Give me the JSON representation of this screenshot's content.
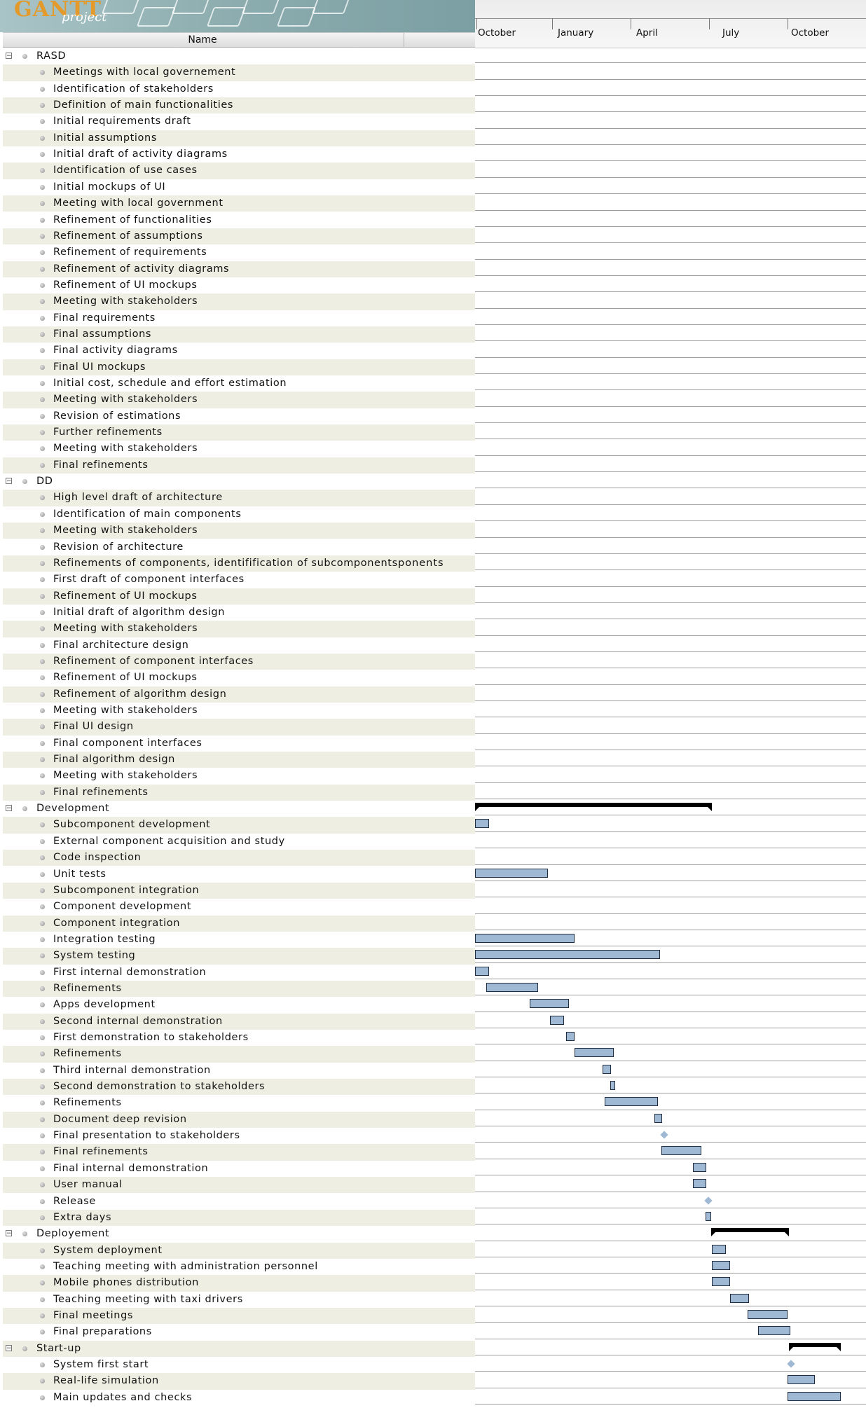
{
  "logo": {
    "title": "GANTT",
    "subtitle": "project"
  },
  "table": {
    "name_header": "Name"
  },
  "timeline": {
    "months": [
      "October",
      "January",
      "April",
      "July",
      "October"
    ]
  },
  "overflow_text": "ponents",
  "colors": {
    "bar_fill": "#9fb8d3",
    "bar_border": "#1f2d3f",
    "row_alt": "#efeee2",
    "summary": "#000000",
    "header_bg": "#7b9fa3"
  },
  "rows": [
    {
      "label": "RASD",
      "type": "group",
      "bar": null
    },
    {
      "label": "Meetings with local governement",
      "type": "task",
      "bar": null
    },
    {
      "label": "Identification of stakeholders",
      "type": "task",
      "bar": null
    },
    {
      "label": "Definition of main functionalities",
      "type": "task",
      "bar": null
    },
    {
      "label": "Initial requirements draft",
      "type": "task",
      "bar": null
    },
    {
      "label": "Initial assumptions",
      "type": "task",
      "bar": null
    },
    {
      "label": "Initial draft of activity diagrams",
      "type": "task",
      "bar": null
    },
    {
      "label": "Identification of use cases",
      "type": "task",
      "bar": null
    },
    {
      "label": "Initial mockups of UI",
      "type": "task",
      "bar": null
    },
    {
      "label": "Meeting with local government",
      "type": "task",
      "bar": null
    },
    {
      "label": "Refinement of functionalities",
      "type": "task",
      "bar": null
    },
    {
      "label": "Refinement of assumptions",
      "type": "task",
      "bar": null
    },
    {
      "label": "Refinement of requirements",
      "type": "task",
      "bar": null
    },
    {
      "label": "Refinement of activity diagrams",
      "type": "task",
      "bar": null
    },
    {
      "label": "Refinement of UI mockups",
      "type": "task",
      "bar": null
    },
    {
      "label": "Meeting with stakeholders",
      "type": "task",
      "bar": null
    },
    {
      "label": "Final requirements",
      "type": "task",
      "bar": null
    },
    {
      "label": "Final assumptions",
      "type": "task",
      "bar": null
    },
    {
      "label": "Final activity diagrams",
      "type": "task",
      "bar": null
    },
    {
      "label": "Final UI mockups",
      "type": "task",
      "bar": null
    },
    {
      "label": "Initial cost, schedule and effort estimation",
      "type": "task",
      "bar": null
    },
    {
      "label": "Meeting with stakeholders",
      "type": "task",
      "bar": null
    },
    {
      "label": "Revision of estimations",
      "type": "task",
      "bar": null
    },
    {
      "label": "Further refinements",
      "type": "task",
      "bar": null
    },
    {
      "label": "Meeting with stakeholders",
      "type": "task",
      "bar": null
    },
    {
      "label": "Final refinements",
      "type": "task",
      "bar": null
    },
    {
      "label": "DD",
      "type": "group",
      "bar": null
    },
    {
      "label": "High level draft of architecture",
      "type": "task",
      "bar": null
    },
    {
      "label": "Identification of main components",
      "type": "task",
      "bar": null
    },
    {
      "label": "Meeting with stakeholders",
      "type": "task",
      "bar": null
    },
    {
      "label": "Revision of architecture",
      "type": "task",
      "bar": null
    },
    {
      "label": "Refinements of components, identifification of subcomponents",
      "type": "task",
      "bar": null
    },
    {
      "label": "First draft of component interfaces",
      "type": "task",
      "bar": null
    },
    {
      "label": "Refinement of UI mockups",
      "type": "task",
      "bar": null
    },
    {
      "label": "Initial draft of algorithm design",
      "type": "task",
      "bar": null
    },
    {
      "label": "Meeting with stakeholders",
      "type": "task",
      "bar": null
    },
    {
      "label": "Final architecture design",
      "type": "task",
      "bar": null
    },
    {
      "label": "Refinement of component interfaces",
      "type": "task",
      "bar": null
    },
    {
      "label": "Refinement of UI mockups",
      "type": "task",
      "bar": null
    },
    {
      "label": "Refinement of algorithm design",
      "type": "task",
      "bar": null
    },
    {
      "label": "Meeting with stakeholders",
      "type": "task",
      "bar": null
    },
    {
      "label": "Final UI design",
      "type": "task",
      "bar": null
    },
    {
      "label": "Final component interfaces",
      "type": "task",
      "bar": null
    },
    {
      "label": "Final algorithm design",
      "type": "task",
      "bar": null
    },
    {
      "label": "Meeting with stakeholders",
      "type": "task",
      "bar": null
    },
    {
      "label": "Final refinements",
      "type": "task",
      "bar": null
    },
    {
      "label": "Development",
      "type": "group",
      "bar": {
        "kind": "summary",
        "start": 0.0,
        "end": 0.605
      }
    },
    {
      "label": "Subcomponent development",
      "type": "task",
      "bar": {
        "kind": "task",
        "start": 0.0,
        "end": 0.035
      }
    },
    {
      "label": "External component acquisition and study",
      "type": "task",
      "bar": null
    },
    {
      "label": "Code inspection",
      "type": "task",
      "bar": null
    },
    {
      "label": "Unit tests",
      "type": "task",
      "bar": {
        "kind": "task",
        "start": 0.0,
        "end": 0.187
      }
    },
    {
      "label": "Subcomponent integration",
      "type": "task",
      "bar": null
    },
    {
      "label": "Component development",
      "type": "task",
      "bar": null
    },
    {
      "label": "Component integration",
      "type": "task",
      "bar": null
    },
    {
      "label": "Integration testing",
      "type": "task",
      "bar": {
        "kind": "task",
        "start": 0.0,
        "end": 0.254
      }
    },
    {
      "label": "System testing",
      "type": "task",
      "bar": {
        "kind": "task",
        "start": 0.0,
        "end": 0.474
      }
    },
    {
      "label": "First internal demonstration",
      "type": "task",
      "bar": {
        "kind": "task",
        "start": 0.0,
        "end": 0.035
      }
    },
    {
      "label": "Refinements",
      "type": "task",
      "bar": {
        "kind": "task",
        "start": 0.028,
        "end": 0.162
      }
    },
    {
      "label": "Apps development",
      "type": "task",
      "bar": {
        "kind": "task",
        "start": 0.139,
        "end": 0.24
      }
    },
    {
      "label": "Second internal demonstration",
      "type": "task",
      "bar": {
        "kind": "task",
        "start": 0.192,
        "end": 0.227
      }
    },
    {
      "label": "First demonstration to stakeholders",
      "type": "task",
      "bar": {
        "kind": "task",
        "start": 0.233,
        "end": 0.254
      }
    },
    {
      "label": "Refinements",
      "type": "task",
      "bar": {
        "kind": "task",
        "start": 0.254,
        "end": 0.354
      }
    },
    {
      "label": "Third internal demonstration",
      "type": "task",
      "bar": {
        "kind": "task",
        "start": 0.326,
        "end": 0.347
      }
    },
    {
      "label": "Second demonstration to stakeholders",
      "type": "task",
      "bar": {
        "kind": "task",
        "start": 0.345,
        "end": 0.354
      }
    },
    {
      "label": "Refinements",
      "type": "task",
      "bar": {
        "kind": "task",
        "start": 0.331,
        "end": 0.467
      }
    },
    {
      "label": "Document deep revision",
      "type": "task",
      "bar": {
        "kind": "task",
        "start": 0.458,
        "end": 0.479
      }
    },
    {
      "label": "Final presentation to stakeholders",
      "type": "task",
      "bar": {
        "kind": "milestone",
        "start": 0.484,
        "end": 0.484
      }
    },
    {
      "label": "Final refinements",
      "type": "task",
      "bar": {
        "kind": "task",
        "start": 0.476,
        "end": 0.578
      }
    },
    {
      "label": "Final internal demonstration",
      "type": "task",
      "bar": {
        "kind": "task",
        "start": 0.557,
        "end": 0.592
      }
    },
    {
      "label": "User manual",
      "type": "task",
      "bar": {
        "kind": "task",
        "start": 0.557,
        "end": 0.592
      }
    },
    {
      "label": "Release",
      "type": "task",
      "bar": {
        "kind": "milestone",
        "start": 0.597,
        "end": 0.597
      }
    },
    {
      "label": "Extra days",
      "type": "task",
      "bar": {
        "kind": "task",
        "start": 0.59,
        "end": 0.604
      }
    },
    {
      "label": "Deployement",
      "type": "group",
      "bar": {
        "kind": "summary",
        "start": 0.604,
        "end": 0.803
      }
    },
    {
      "label": "System deployment",
      "type": "task",
      "bar": {
        "kind": "task",
        "start": 0.606,
        "end": 0.641
      }
    },
    {
      "label": "Teaching meeting with administration personnel",
      "type": "task",
      "bar": {
        "kind": "task",
        "start": 0.606,
        "end": 0.652
      }
    },
    {
      "label": "Mobile phones distribution",
      "type": "task",
      "bar": {
        "kind": "task",
        "start": 0.606,
        "end": 0.652
      }
    },
    {
      "label": "Teaching meeting with taxi drivers",
      "type": "task",
      "bar": {
        "kind": "task",
        "start": 0.652,
        "end": 0.701
      }
    },
    {
      "label": "Final meetings",
      "type": "task",
      "bar": {
        "kind": "task",
        "start": 0.698,
        "end": 0.799
      }
    },
    {
      "label": "Final preparations",
      "type": "task",
      "bar": {
        "kind": "task",
        "start": 0.724,
        "end": 0.806
      }
    },
    {
      "label": "Start-up",
      "type": "group",
      "bar": {
        "kind": "summary",
        "start": 0.803,
        "end": 0.935
      }
    },
    {
      "label": "System first start",
      "type": "task",
      "bar": {
        "kind": "milestone",
        "start": 0.808,
        "end": 0.808
      }
    },
    {
      "label": "Real-life simulation",
      "type": "task",
      "bar": {
        "kind": "task",
        "start": 0.8,
        "end": 0.87
      }
    },
    {
      "label": "Main updates and checks",
      "type": "task",
      "bar": {
        "kind": "task",
        "start": 0.8,
        "end": 0.935
      }
    }
  ]
}
